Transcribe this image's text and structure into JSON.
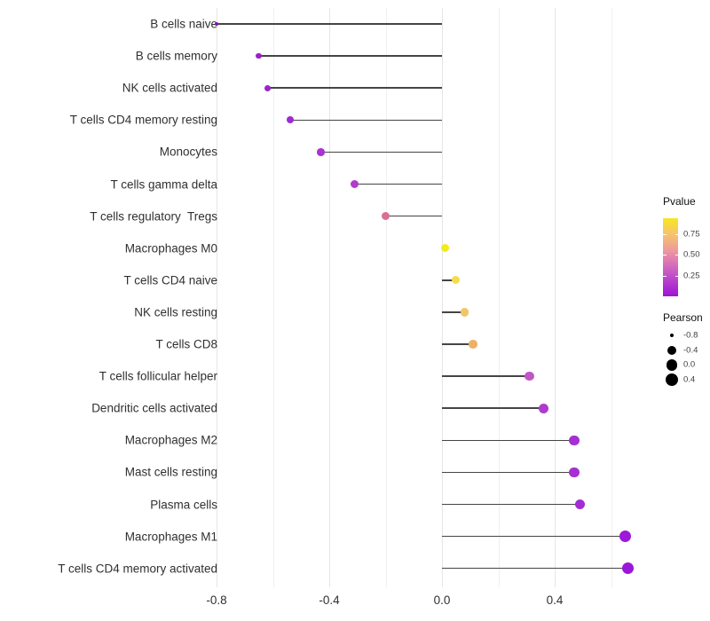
{
  "chart_data": {
    "type": "lollipop",
    "orientation": "horizontal",
    "title": "",
    "xlabel": "",
    "ylabel": "",
    "xlim": [
      -0.87,
      0.72
    ],
    "x_major_ticks": [
      -0.8,
      -0.4,
      0.0,
      0.4
    ],
    "x_major_tick_labels": [
      "-0.8",
      "-0.4",
      "0.0",
      "0.4"
    ],
    "x_minor_ticks": [
      -0.6,
      -0.2,
      0.2,
      0.6
    ],
    "grid": "vertical-only",
    "baseline_x": 0.0,
    "stem_color": "#454545",
    "rows": [
      {
        "label": "B cells naive",
        "pearson": -0.8,
        "pvalue": 0.005,
        "color": "#8A0FB5",
        "radius": 2.0
      },
      {
        "label": "B cells memory",
        "pearson": -0.65,
        "pvalue": 0.06,
        "color": "#9A20CE",
        "radius": 3.3
      },
      {
        "label": "NK cells activated",
        "pearson": -0.62,
        "pvalue": 0.07,
        "color": "#9C23CF",
        "radius": 3.6
      },
      {
        "label": "T cells CD4 memory resting",
        "pearson": -0.54,
        "pvalue": 0.09,
        "color": "#A02AD0",
        "radius": 4.0
      },
      {
        "label": "Monocytes",
        "pearson": -0.43,
        "pvalue": 0.12,
        "color": "#A833D2",
        "radius": 4.3
      },
      {
        "label": "T cells gamma delta",
        "pearson": -0.31,
        "pvalue": 0.24,
        "color": "#B03CCB",
        "radius": 4.5
      },
      {
        "label": "T cells regulatory  Tregs",
        "pearson": -0.2,
        "pvalue": 0.47,
        "color": "#DB6F93",
        "radius": 4.6
      },
      {
        "label": "Macrophages M0",
        "pearson": 0.01,
        "pvalue": 0.93,
        "color": "#F2EB20",
        "radius": 4.5
      },
      {
        "label": "T cells CD4 naive",
        "pearson": 0.05,
        "pvalue": 0.82,
        "color": "#F5DC4C",
        "radius": 4.6
      },
      {
        "label": "NK cells resting",
        "pearson": 0.08,
        "pvalue": 0.72,
        "color": "#F1C666",
        "radius": 4.7
      },
      {
        "label": "T cells CD8",
        "pearson": 0.11,
        "pvalue": 0.63,
        "color": "#ECB164",
        "radius": 4.8
      },
      {
        "label": "T cells follicular helper",
        "pearson": 0.31,
        "pvalue": 0.31,
        "color": "#C156C6",
        "radius": 5.3
      },
      {
        "label": "Dendritic cells activated",
        "pearson": 0.36,
        "pvalue": 0.19,
        "color": "#AE3BCD",
        "radius": 5.5
      },
      {
        "label": "Macrophages M2",
        "pearson": 0.47,
        "pvalue": 0.11,
        "color": "#A62FD2",
        "radius": 5.8
      },
      {
        "label": "Mast cells resting",
        "pearson": 0.47,
        "pvalue": 0.11,
        "color": "#A62FD2",
        "radius": 5.8
      },
      {
        "label": "Plasma cells",
        "pearson": 0.49,
        "pvalue": 0.1,
        "color": "#A42CD3",
        "radius": 5.9
      },
      {
        "label": "Macrophages M1",
        "pearson": 0.65,
        "pvalue": 0.03,
        "color": "#9C19D9",
        "radius": 6.5
      },
      {
        "label": "T cells CD4 memory activated",
        "pearson": 0.66,
        "pvalue": 0.02,
        "color": "#9A16DA",
        "radius": 6.6
      }
    ],
    "legend": {
      "pvalue": {
        "title": "Pvalue",
        "range_bottom_to_top": [
          0.005,
          0.94
        ],
        "ticks": [
          0.75,
          0.5,
          0.25
        ],
        "tick_labels": [
          "0.75",
          "0.50",
          "0.25"
        ],
        "gradient_top_to_bottom": [
          {
            "color": "#F9E622",
            "pos": 0
          },
          {
            "color": "#F6C46A",
            "pos": 20
          },
          {
            "color": "#EF9C9B",
            "pos": 40
          },
          {
            "color": "#DC76B6",
            "pos": 56
          },
          {
            "color": "#C250C8",
            "pos": 73
          },
          {
            "color": "#AA2CD1",
            "pos": 89
          },
          {
            "color": "#9E15CF",
            "pos": 100
          }
        ]
      },
      "pearson": {
        "title": "Pearson",
        "dot_color": "#000000",
        "entries": [
          {
            "label": "-0.8",
            "radius": 2.2
          },
          {
            "label": "-0.4",
            "radius": 5.0
          },
          {
            "label": "0.0",
            "radius": 6.3
          },
          {
            "label": "0.4",
            "radius": 7.3
          }
        ]
      }
    }
  }
}
